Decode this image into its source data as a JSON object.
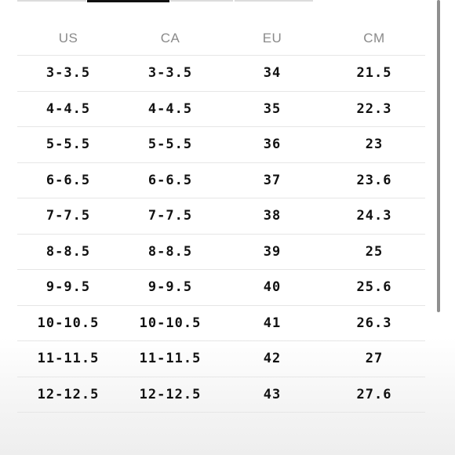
{
  "size_chart": {
    "headers": [
      "US",
      "CA",
      "EU",
      "CM"
    ],
    "rows": [
      [
        "3-3.5",
        "3-3.5",
        "34",
        "21.5"
      ],
      [
        "4-4.5",
        "4-4.5",
        "35",
        "22.3"
      ],
      [
        "5-5.5",
        "5-5.5",
        "36",
        "23"
      ],
      [
        "6-6.5",
        "6-6.5",
        "37",
        "23.6"
      ],
      [
        "7-7.5",
        "7-7.5",
        "38",
        "24.3"
      ],
      [
        "8-8.5",
        "8-8.5",
        "39",
        "25"
      ],
      [
        "9-9.5",
        "9-9.5",
        "40",
        "25.6"
      ],
      [
        "10-10.5",
        "10-10.5",
        "41",
        "26.3"
      ],
      [
        "11-11.5",
        "11-11.5",
        "42",
        "27"
      ],
      [
        "12-12.5",
        "12-12.5",
        "43",
        "27.6"
      ]
    ]
  },
  "colors": {
    "active_tab": "#111111",
    "inactive_tab": "#dcdcdc",
    "divider": "#e6e6e6",
    "header_text": "#8a8a8a"
  }
}
